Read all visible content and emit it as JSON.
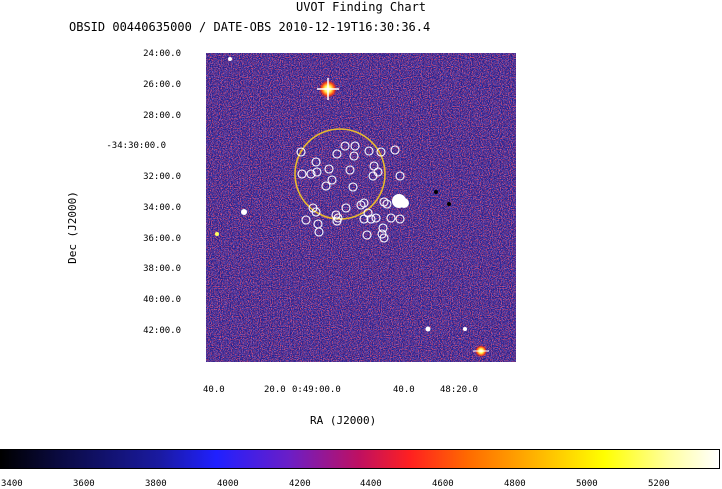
{
  "title": "UVOT Finding Chart",
  "subtitle": "OBSID 00440635000 / DATE-OBS 2010-12-19T16:30:36.4",
  "axes": {
    "xlabel": "RA (J2000)",
    "ylabel": "Dec (J2000)",
    "yticks": [
      "24:00.0",
      "26:00.0",
      "28:00.0",
      "-34:30:00.0",
      "32:00.0",
      "34:00.0",
      "36:00.0",
      "38:00.0",
      "40:00.0",
      "42:00.0"
    ],
    "xticks": [
      "40.0",
      "20.0",
      "0:49:00.0",
      "40.0",
      "48:20.0"
    ]
  },
  "colorbar": {
    "ticks": [
      "3400",
      "3600",
      "3800",
      "4000",
      "4200",
      "4400",
      "4600",
      "4800",
      "5000",
      "5200"
    ]
  },
  "colors": {
    "circle_large": "#e8b830",
    "circle_small": "#ffffff",
    "background_noise": "#1e1e8c"
  }
}
